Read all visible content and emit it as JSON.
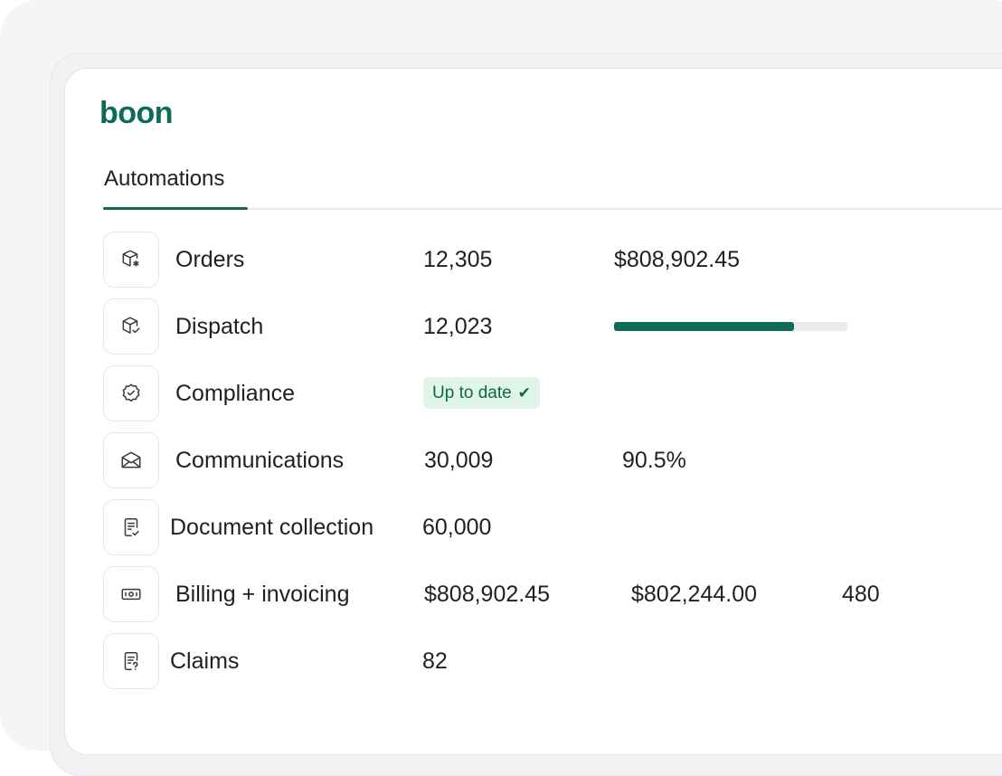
{
  "brand": {
    "logo_text": "boon",
    "accent_color": "#0d6b58"
  },
  "tabs": [
    {
      "label": "Automations",
      "active": true
    }
  ],
  "rows": [
    {
      "label": "Orders",
      "icon": "box-star-icon",
      "col1": "12,305",
      "col2": "$808,902.45"
    },
    {
      "label": "Dispatch",
      "icon": "box-check-icon",
      "col1": "12,023",
      "progress": 0.77
    },
    {
      "label": "Compliance",
      "icon": "badge-check-icon",
      "badge": "Up to date",
      "badge_icon": "checkmark-icon"
    },
    {
      "label": "Communications",
      "icon": "envelope-icon",
      "col1": "30,009",
      "col2": "90.5%"
    },
    {
      "label": "Document collection",
      "icon": "document-check-icon",
      "col1": "60,000"
    },
    {
      "label": "Billing + invoicing",
      "icon": "banknote-icon",
      "col1": "$808,902.45",
      "col2": "$802,244.00",
      "col3": "480"
    },
    {
      "label": "Claims",
      "icon": "document-question-icon",
      "col1": "82"
    }
  ],
  "colors": {
    "badge_bg": "#e1f4ea",
    "badge_text": "#0b6a42",
    "progress_track": "#ebeaee"
  }
}
